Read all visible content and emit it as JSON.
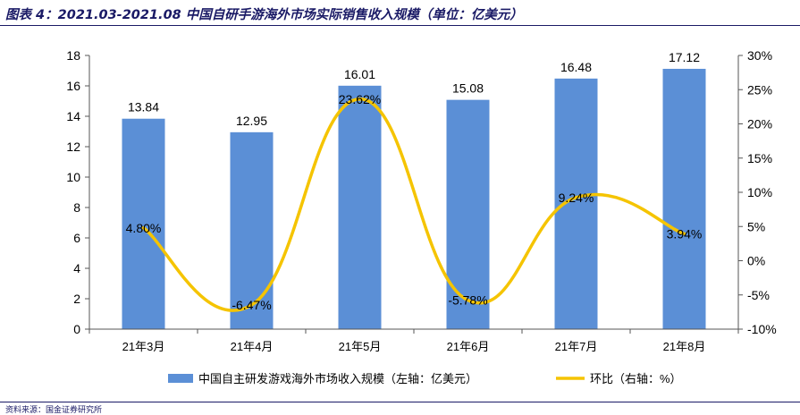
{
  "title": "图表 4：2021.03-2021.08 中国自研手游海外市场实际销售收入规模（单位：亿美元）",
  "source": "资料来源：国金证券研究所",
  "chart_data": {
    "type": "bar+line",
    "categories": [
      "21年3月",
      "21年4月",
      "21年5月",
      "21年6月",
      "21年7月",
      "21年8月"
    ],
    "series": [
      {
        "name": "中国自主研发游戏海外市场收入规模（左轴：亿美元）",
        "type": "bar",
        "axis": "left",
        "color": "#5b8fd6",
        "values": [
          13.84,
          12.95,
          16.01,
          15.08,
          16.48,
          17.12
        ],
        "labels": [
          "13.84",
          "12.95",
          "16.01",
          "15.08",
          "16.48",
          "17.12"
        ]
      },
      {
        "name": "环比（右轴：%）",
        "type": "line",
        "axis": "right",
        "color": "#f5c400",
        "values": [
          4.8,
          -6.47,
          23.62,
          -5.78,
          9.24,
          3.94
        ],
        "labels": [
          "4.80%",
          "-6.47%",
          "23.62%",
          "-5.78%",
          "9.24%",
          "3.94%"
        ]
      }
    ],
    "left_axis": {
      "ylim": [
        0,
        18
      ],
      "ticks": [
        0,
        2,
        4,
        6,
        8,
        10,
        12,
        14,
        16,
        18
      ],
      "tick_labels": [
        "0",
        "2",
        "4",
        "6",
        "8",
        "10",
        "12",
        "14",
        "16",
        "18"
      ]
    },
    "right_axis": {
      "ylim": [
        -10,
        30
      ],
      "ticks": [
        -10,
        -5,
        0,
        5,
        10,
        15,
        20,
        25,
        30
      ],
      "tick_labels": [
        "-10%",
        "-5%",
        "0%",
        "5%",
        "10%",
        "15%",
        "20%",
        "25%",
        "30%"
      ]
    },
    "grid": false,
    "legend_position": "bottom"
  }
}
